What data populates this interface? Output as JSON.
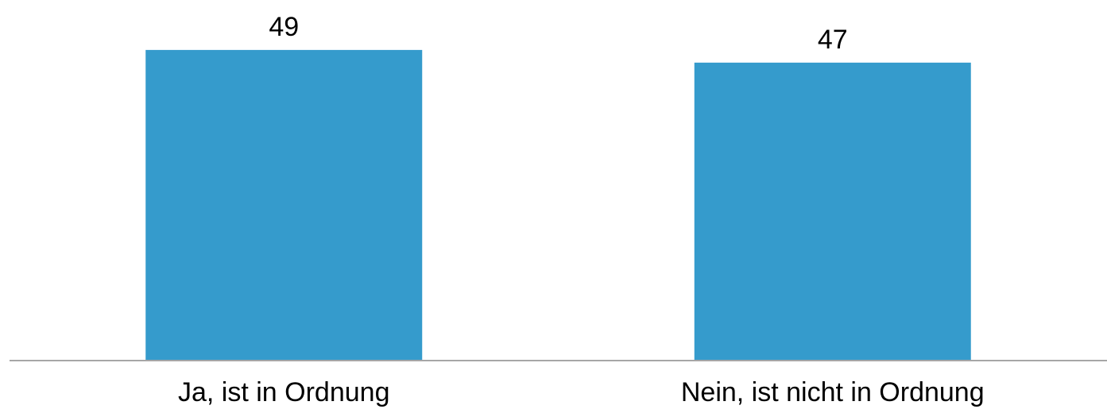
{
  "chart_data": {
    "type": "bar",
    "categories": [
      "Ja, ist in Ordnung",
      "Nein, ist nicht in Ordnung"
    ],
    "values": [
      49,
      47
    ],
    "title": "",
    "xlabel": "",
    "ylabel": "",
    "ylim": [
      0,
      55
    ],
    "grid": false,
    "legend": "none",
    "data_labels": [
      "49",
      "47"
    ],
    "colors": {
      "bar": "#359BCC",
      "axis": "#A6A6A6"
    }
  }
}
